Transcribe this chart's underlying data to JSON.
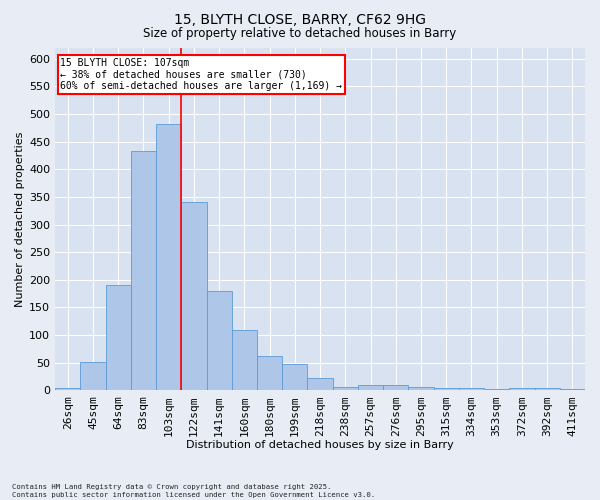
{
  "title1": "15, BLYTH CLOSE, BARRY, CF62 9HG",
  "title2": "Size of property relative to detached houses in Barry",
  "xlabel": "Distribution of detached houses by size in Barry",
  "ylabel": "Number of detached properties",
  "categories": [
    "26sqm",
    "45sqm",
    "64sqm",
    "83sqm",
    "103sqm",
    "122sqm",
    "141sqm",
    "160sqm",
    "180sqm",
    "199sqm",
    "218sqm",
    "238sqm",
    "257sqm",
    "276sqm",
    "295sqm",
    "315sqm",
    "334sqm",
    "353sqm",
    "372sqm",
    "392sqm",
    "411sqm"
  ],
  "values": [
    5,
    52,
    190,
    432,
    481,
    340,
    180,
    110,
    62,
    47,
    22,
    7,
    10,
    10,
    6,
    5,
    5,
    2,
    5,
    5,
    2
  ],
  "bar_color": "#aec6e8",
  "bar_edge_color": "#5b9bd5",
  "vline_color": "red",
  "vline_x_index": 4.5,
  "annotation_title": "15 BLYTH CLOSE: 107sqm",
  "annotation_line1": "← 38% of detached houses are smaller (730)",
  "annotation_line2": "60% of semi-detached houses are larger (1,169) →",
  "annotation_box_color": "white",
  "annotation_box_edge_color": "red",
  "ylim": [
    0,
    620
  ],
  "yticks": [
    0,
    50,
    100,
    150,
    200,
    250,
    300,
    350,
    400,
    450,
    500,
    550,
    600
  ],
  "footer": "Contains HM Land Registry data © Crown copyright and database right 2025.\nContains public sector information licensed under the Open Government Licence v3.0.",
  "background_color": "#e8edf5",
  "plot_background_color": "#d8e2f0",
  "grid_color": "white"
}
